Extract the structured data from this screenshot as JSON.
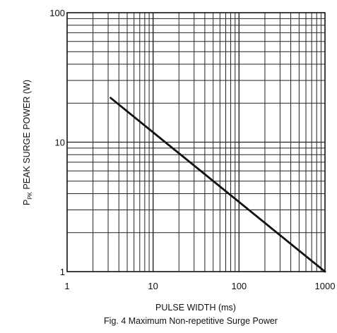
{
  "chart_data": {
    "type": "line",
    "title": "",
    "caption": "Fig. 4  Maximum Non-repetitive Surge Power",
    "xlabel": "PULSE WIDTH (ms)",
    "ylabel_main": "P",
    "ylabel_sub": "PK",
    "ylabel_rest": " PEAK SURGE POWER (W)",
    "x_scale": "log",
    "y_scale": "log",
    "xlim": [
      1,
      1000
    ],
    "ylim": [
      1,
      100
    ],
    "grid": true,
    "x_ticks": [
      {
        "value": 1,
        "label": "1"
      },
      {
        "value": 10,
        "label": "10"
      },
      {
        "value": 100,
        "label": "100"
      },
      {
        "value": 1000,
        "label": "1000"
      }
    ],
    "y_ticks": [
      {
        "value": 1,
        "label": "1"
      },
      {
        "value": 10,
        "label": "10"
      },
      {
        "value": 100,
        "label": "100"
      }
    ],
    "series": [
      {
        "name": "",
        "color": "#111111",
        "points": [
          {
            "x": 3.2,
            "y": 22
          },
          {
            "x": 1000,
            "y": 1
          }
        ]
      }
    ]
  }
}
